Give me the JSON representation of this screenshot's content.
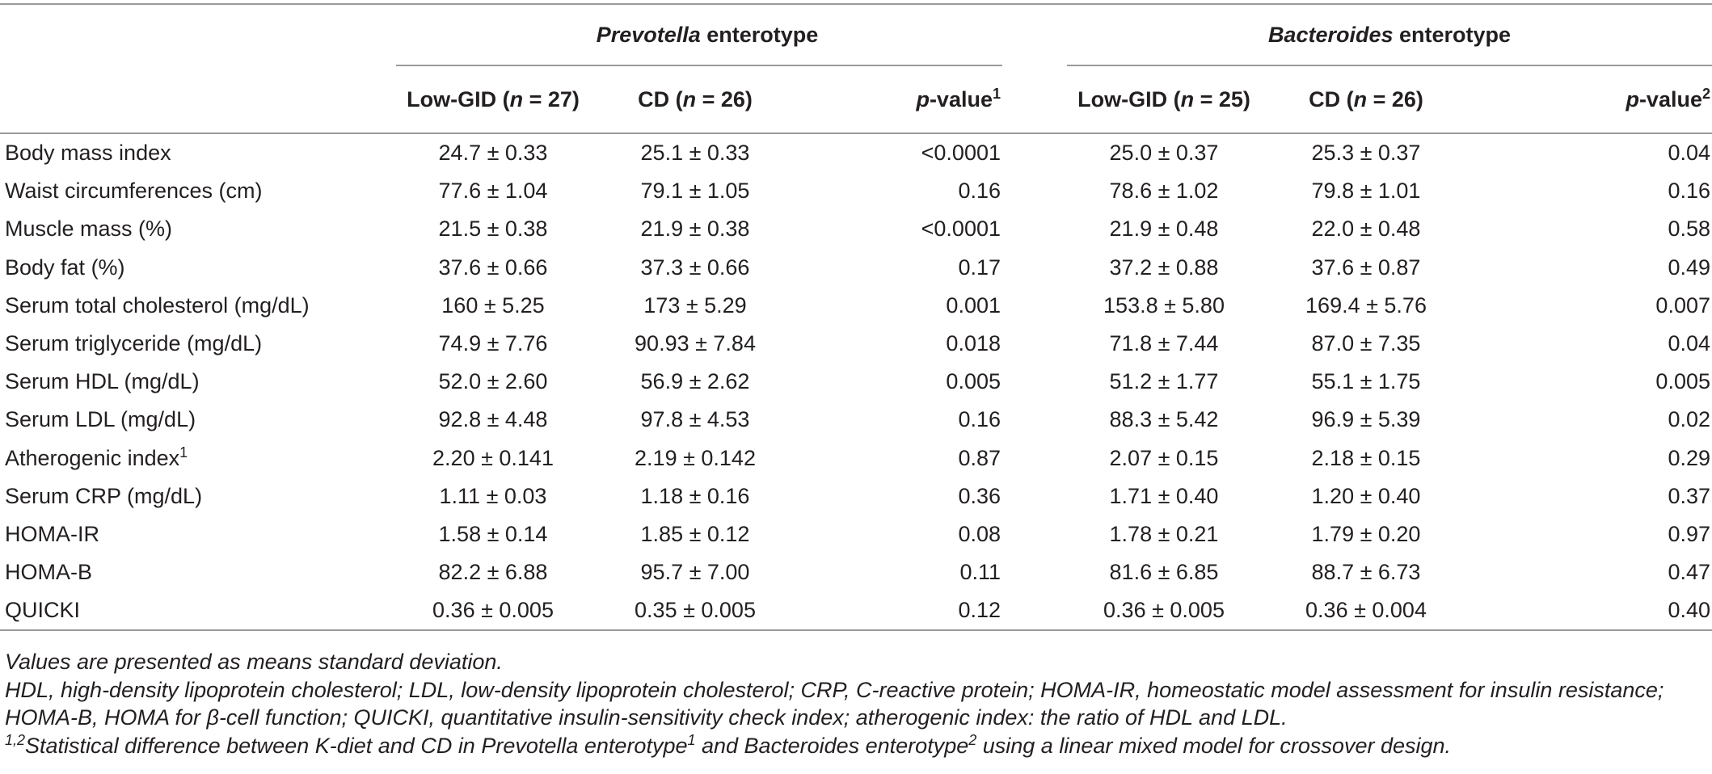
{
  "table": {
    "groups": {
      "prevotella": {
        "name": "Prevotella",
        "suffix": " enterotype"
      },
      "bacteroides": {
        "name": "Bacteroides",
        "suffix": " enterotype"
      }
    },
    "columns": {
      "prev_low": {
        "pre": "Low-GID (",
        "n": "n",
        "post": " = 27)"
      },
      "prev_cd": {
        "pre": "CD (",
        "n": "n",
        "post": " = 26)"
      },
      "prev_p": {
        "p": "p",
        "post": "-value",
        "sup": "1"
      },
      "bac_low": {
        "pre": "Low-GID (",
        "n": "n",
        "post": " = 25)"
      },
      "bac_cd": {
        "pre": "CD (",
        "n": "n",
        "post": " = 26)"
      },
      "bac_p": {
        "p": "p",
        "post": "-value",
        "sup": "2"
      }
    },
    "rows": [
      {
        "label": "Body mass index",
        "label_sup": "",
        "prev_low": "24.7 ± 0.33",
        "prev_cd": "25.1 ± 0.33",
        "prev_p": "<0.0001",
        "bac_low": "25.0 ± 0.37",
        "bac_cd": "25.3 ± 0.37",
        "bac_p": "0.04"
      },
      {
        "label": "Waist circumferences (cm)",
        "label_sup": "",
        "prev_low": "77.6 ± 1.04",
        "prev_cd": "79.1 ± 1.05",
        "prev_p": "0.16",
        "bac_low": "78.6 ± 1.02",
        "bac_cd": "79.8 ± 1.01",
        "bac_p": "0.16"
      },
      {
        "label": "Muscle mass (%)",
        "label_sup": "",
        "prev_low": "21.5 ± 0.38",
        "prev_cd": "21.9 ± 0.38",
        "prev_p": "<0.0001",
        "bac_low": "21.9 ± 0.48",
        "bac_cd": "22.0 ± 0.48",
        "bac_p": "0.58"
      },
      {
        "label": "Body fat (%)",
        "label_sup": "",
        "prev_low": "37.6 ± 0.66",
        "prev_cd": "37.3 ± 0.66",
        "prev_p": "0.17",
        "bac_low": "37.2 ± 0.88",
        "bac_cd": "37.6 ± 0.87",
        "bac_p": "0.49"
      },
      {
        "label": "Serum total cholesterol (mg/dL)",
        "label_sup": "",
        "prev_low": "160 ± 5.25",
        "prev_cd": "173 ± 5.29",
        "prev_p": "0.001",
        "bac_low": "153.8 ± 5.80",
        "bac_cd": "169.4 ± 5.76",
        "bac_p": "0.007"
      },
      {
        "label": "Serum triglyceride (mg/dL)",
        "label_sup": "",
        "prev_low": "74.9 ± 7.76",
        "prev_cd": "90.93 ± 7.84",
        "prev_p": "0.018",
        "bac_low": "71.8 ± 7.44",
        "bac_cd": "87.0 ± 7.35",
        "bac_p": "0.04"
      },
      {
        "label": "Serum HDL (mg/dL)",
        "label_sup": "",
        "prev_low": "52.0 ± 2.60",
        "prev_cd": "56.9 ± 2.62",
        "prev_p": "0.005",
        "bac_low": "51.2 ± 1.77",
        "bac_cd": "55.1 ± 1.75",
        "bac_p": "0.005"
      },
      {
        "label": "Serum LDL (mg/dL)",
        "label_sup": "",
        "prev_low": "92.8 ± 4.48",
        "prev_cd": "97.8 ± 4.53",
        "prev_p": "0.16",
        "bac_low": "88.3 ± 5.42",
        "bac_cd": "96.9 ± 5.39",
        "bac_p": "0.02"
      },
      {
        "label": "Atherogenic index",
        "label_sup": "1",
        "prev_low": "2.20 ± 0.141",
        "prev_cd": "2.19 ± 0.142",
        "prev_p": "0.87",
        "bac_low": "2.07 ± 0.15",
        "bac_cd": "2.18 ± 0.15",
        "bac_p": "0.29"
      },
      {
        "label": "Serum CRP (mg/dL)",
        "label_sup": "",
        "prev_low": "1.11 ± 0.03",
        "prev_cd": "1.18 ± 0.16",
        "prev_p": "0.36",
        "bac_low": "1.71 ± 0.40",
        "bac_cd": "1.20 ± 0.40",
        "bac_p": "0.37"
      },
      {
        "label": "HOMA-IR",
        "label_sup": "",
        "prev_low": "1.58 ± 0.14",
        "prev_cd": "1.85 ± 0.12",
        "prev_p": "0.08",
        "bac_low": "1.78 ± 0.21",
        "bac_cd": "1.79 ± 0.20",
        "bac_p": "0.97"
      },
      {
        "label": "HOMA-B",
        "label_sup": "",
        "prev_low": "82.2 ± 6.88",
        "prev_cd": "95.7 ± 7.00",
        "prev_p": "0.11",
        "bac_low": "81.6 ± 6.85",
        "bac_cd": "88.7 ± 6.73",
        "bac_p": "0.47"
      },
      {
        "label": "QUICKI",
        "label_sup": "",
        "prev_low": "0.36 ± 0.005",
        "prev_cd": "0.35 ± 0.005",
        "prev_p": "0.12",
        "bac_low": "0.36 ± 0.005",
        "bac_cd": "0.36 ± 0.004",
        "bac_p": "0.40"
      }
    ]
  },
  "notes": {
    "values_note": "Values are presented as means standard deviation.",
    "abbrev_note": "HDL, high-density lipoprotein cholesterol; LDL, low-density lipoprotein cholesterol; CRP, C-reactive protein; HOMA-IR, homeostatic model assessment for insulin resistance; HOMA-B, HOMA for β-cell function; QUICKI, quantitative insulin-sensitivity check index; atherogenic index: the ratio of HDL and LDL.",
    "stat_sup": "1,2",
    "stat_part1": "Statistical difference between K-diet and CD in Prevotella enterotype",
    "stat_sup1": "1",
    "stat_part2": " and Bacteroides enterotype",
    "stat_sup2": "2",
    "stat_part3": " using a linear mixed model for crossover design."
  }
}
